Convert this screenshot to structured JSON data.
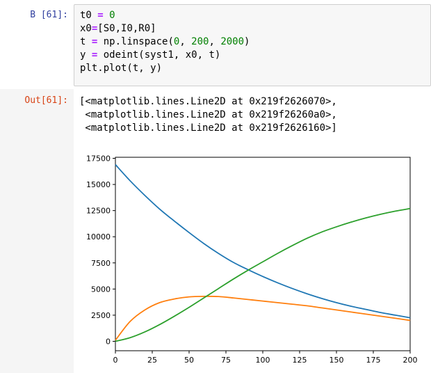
{
  "input_cell": {
    "prompt": "В [61]:",
    "lines": [
      [
        {
          "t": "t0 "
        },
        {
          "t": "=",
          "c": "op"
        },
        {
          "t": " "
        },
        {
          "t": "0",
          "c": "num"
        }
      ],
      [
        {
          "t": "x0"
        },
        {
          "t": "=",
          "c": "op"
        },
        {
          "t": "[S0,I0,R0]"
        }
      ],
      [
        {
          "t": "t "
        },
        {
          "t": "=",
          "c": "op"
        },
        {
          "t": " np.linspace("
        },
        {
          "t": "0",
          "c": "num"
        },
        {
          "t": ", "
        },
        {
          "t": "200",
          "c": "num"
        },
        {
          "t": ", "
        },
        {
          "t": "2000",
          "c": "num"
        },
        {
          "t": ")"
        }
      ],
      [
        {
          "t": "y "
        },
        {
          "t": "=",
          "c": "op"
        },
        {
          "t": " odeint(syst1, x0, t)"
        }
      ],
      [
        {
          "t": "plt.plot(t, y)"
        }
      ]
    ]
  },
  "output_cell": {
    "prompt": "Out[61]:",
    "text_lines": [
      "[<matplotlib.lines.Line2D at 0x219f2626070>,",
      " <matplotlib.lines.Line2D at 0x219f26260a0>,",
      " <matplotlib.lines.Line2D at 0x219f2626160>]"
    ]
  },
  "chart_data": {
    "type": "line",
    "xlim": [
      0,
      200
    ],
    "ylim": [
      -900,
      17600
    ],
    "xticks": [
      0,
      25,
      50,
      75,
      100,
      125,
      150,
      175,
      200
    ],
    "yticks": [
      0,
      2500,
      5000,
      7500,
      10000,
      12500,
      15000,
      17500
    ],
    "grid": false,
    "x": [
      0,
      10,
      20,
      30,
      40,
      50,
      60,
      70,
      80,
      90,
      100,
      110,
      120,
      130,
      140,
      150,
      160,
      170,
      180,
      190,
      200
    ],
    "series": [
      {
        "color": "#1f77b4",
        "values": [
          16900,
          15350,
          13950,
          12650,
          11500,
          10400,
          9350,
          8400,
          7550,
          6850,
          6200,
          5600,
          5050,
          4550,
          4100,
          3700,
          3350,
          3050,
          2750,
          2500,
          2250
        ]
      },
      {
        "color": "#ff7f0e",
        "values": [
          100,
          1900,
          3000,
          3700,
          4050,
          4250,
          4300,
          4280,
          4150,
          4000,
          3850,
          3700,
          3550,
          3400,
          3200,
          3000,
          2800,
          2600,
          2400,
          2200,
          2000
        ]
      },
      {
        "color": "#2ca02c",
        "values": [
          0,
          350,
          900,
          1600,
          2400,
          3250,
          4150,
          5050,
          5950,
          6800,
          7600,
          8400,
          9150,
          9850,
          10450,
          10950,
          11400,
          11800,
          12150,
          12450,
          12700
        ]
      }
    ]
  }
}
